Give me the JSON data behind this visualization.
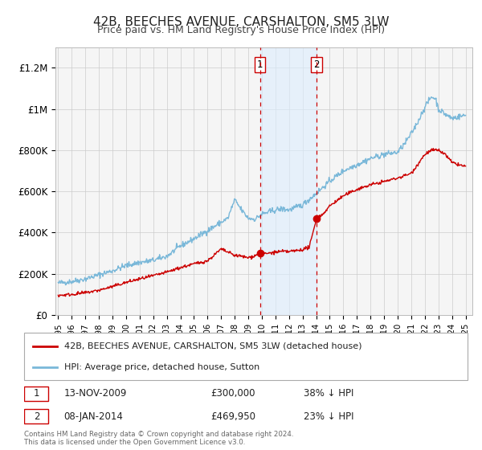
{
  "title": "42B, BEECHES AVENUE, CARSHALTON, SM5 3LW",
  "subtitle": "Price paid vs. HM Land Registry's House Price Index (HPI)",
  "legend_entry1": "42B, BEECHES AVENUE, CARSHALTON, SM5 3LW (detached house)",
  "legend_entry2": "HPI: Average price, detached house, Sutton",
  "annotation1_label": "1",
  "annotation1_date": "13-NOV-2009",
  "annotation1_price": "£300,000",
  "annotation1_hpi": "38% ↓ HPI",
  "annotation2_label": "2",
  "annotation2_date": "08-JAN-2014",
  "annotation2_price": "£469,950",
  "annotation2_hpi": "23% ↓ HPI",
  "footer1": "Contains HM Land Registry data © Crown copyright and database right 2024.",
  "footer2": "This data is licensed under the Open Government Licence v3.0.",
  "sale1_x": 2009.87,
  "sale1_y": 300000,
  "sale2_x": 2014.03,
  "sale2_y": 469950,
  "vline1_x": 2009.87,
  "vline2_x": 2014.03,
  "hpi_color": "#7ab8d9",
  "sale_color": "#cc0000",
  "vline_color": "#cc0000",
  "shade_color": "#ddeeff",
  "ylim": [
    0,
    1300000
  ],
  "xlim": [
    1994.8,
    2025.5
  ],
  "background_color": "#f5f5f5"
}
